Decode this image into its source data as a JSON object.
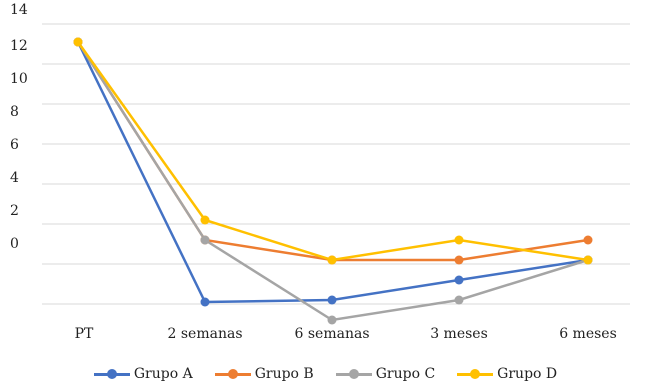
{
  "chart_data": {
    "type": "line",
    "categories": [
      "PT",
      "2 semanas",
      "6 semanas",
      "3 meses",
      "6 meses"
    ],
    "y_tick_labels": [
      "14",
      "12",
      "10",
      "8",
      "6",
      "4",
      "2",
      "0"
    ],
    "series": [
      {
        "name": "Grupo A",
        "color": "#4472c4",
        "values": [
          10,
          -3,
          -2.9,
          -1.9,
          -0.9
        ]
      },
      {
        "name": "Grupo B",
        "color": "#ed7d31",
        "values": [
          10,
          0.1,
          -0.9,
          -0.9,
          0.1
        ]
      },
      {
        "name": "Grupo C",
        "color": "#a5a5a5",
        "values": [
          10,
          0.1,
          -3.9,
          -2.9,
          -0.9
        ]
      },
      {
        "name": "Grupo D",
        "color": "#ffc000",
        "values": [
          10,
          1.1,
          -0.9,
          0.1,
          -0.9
        ]
      }
    ],
    "grid": true
  }
}
